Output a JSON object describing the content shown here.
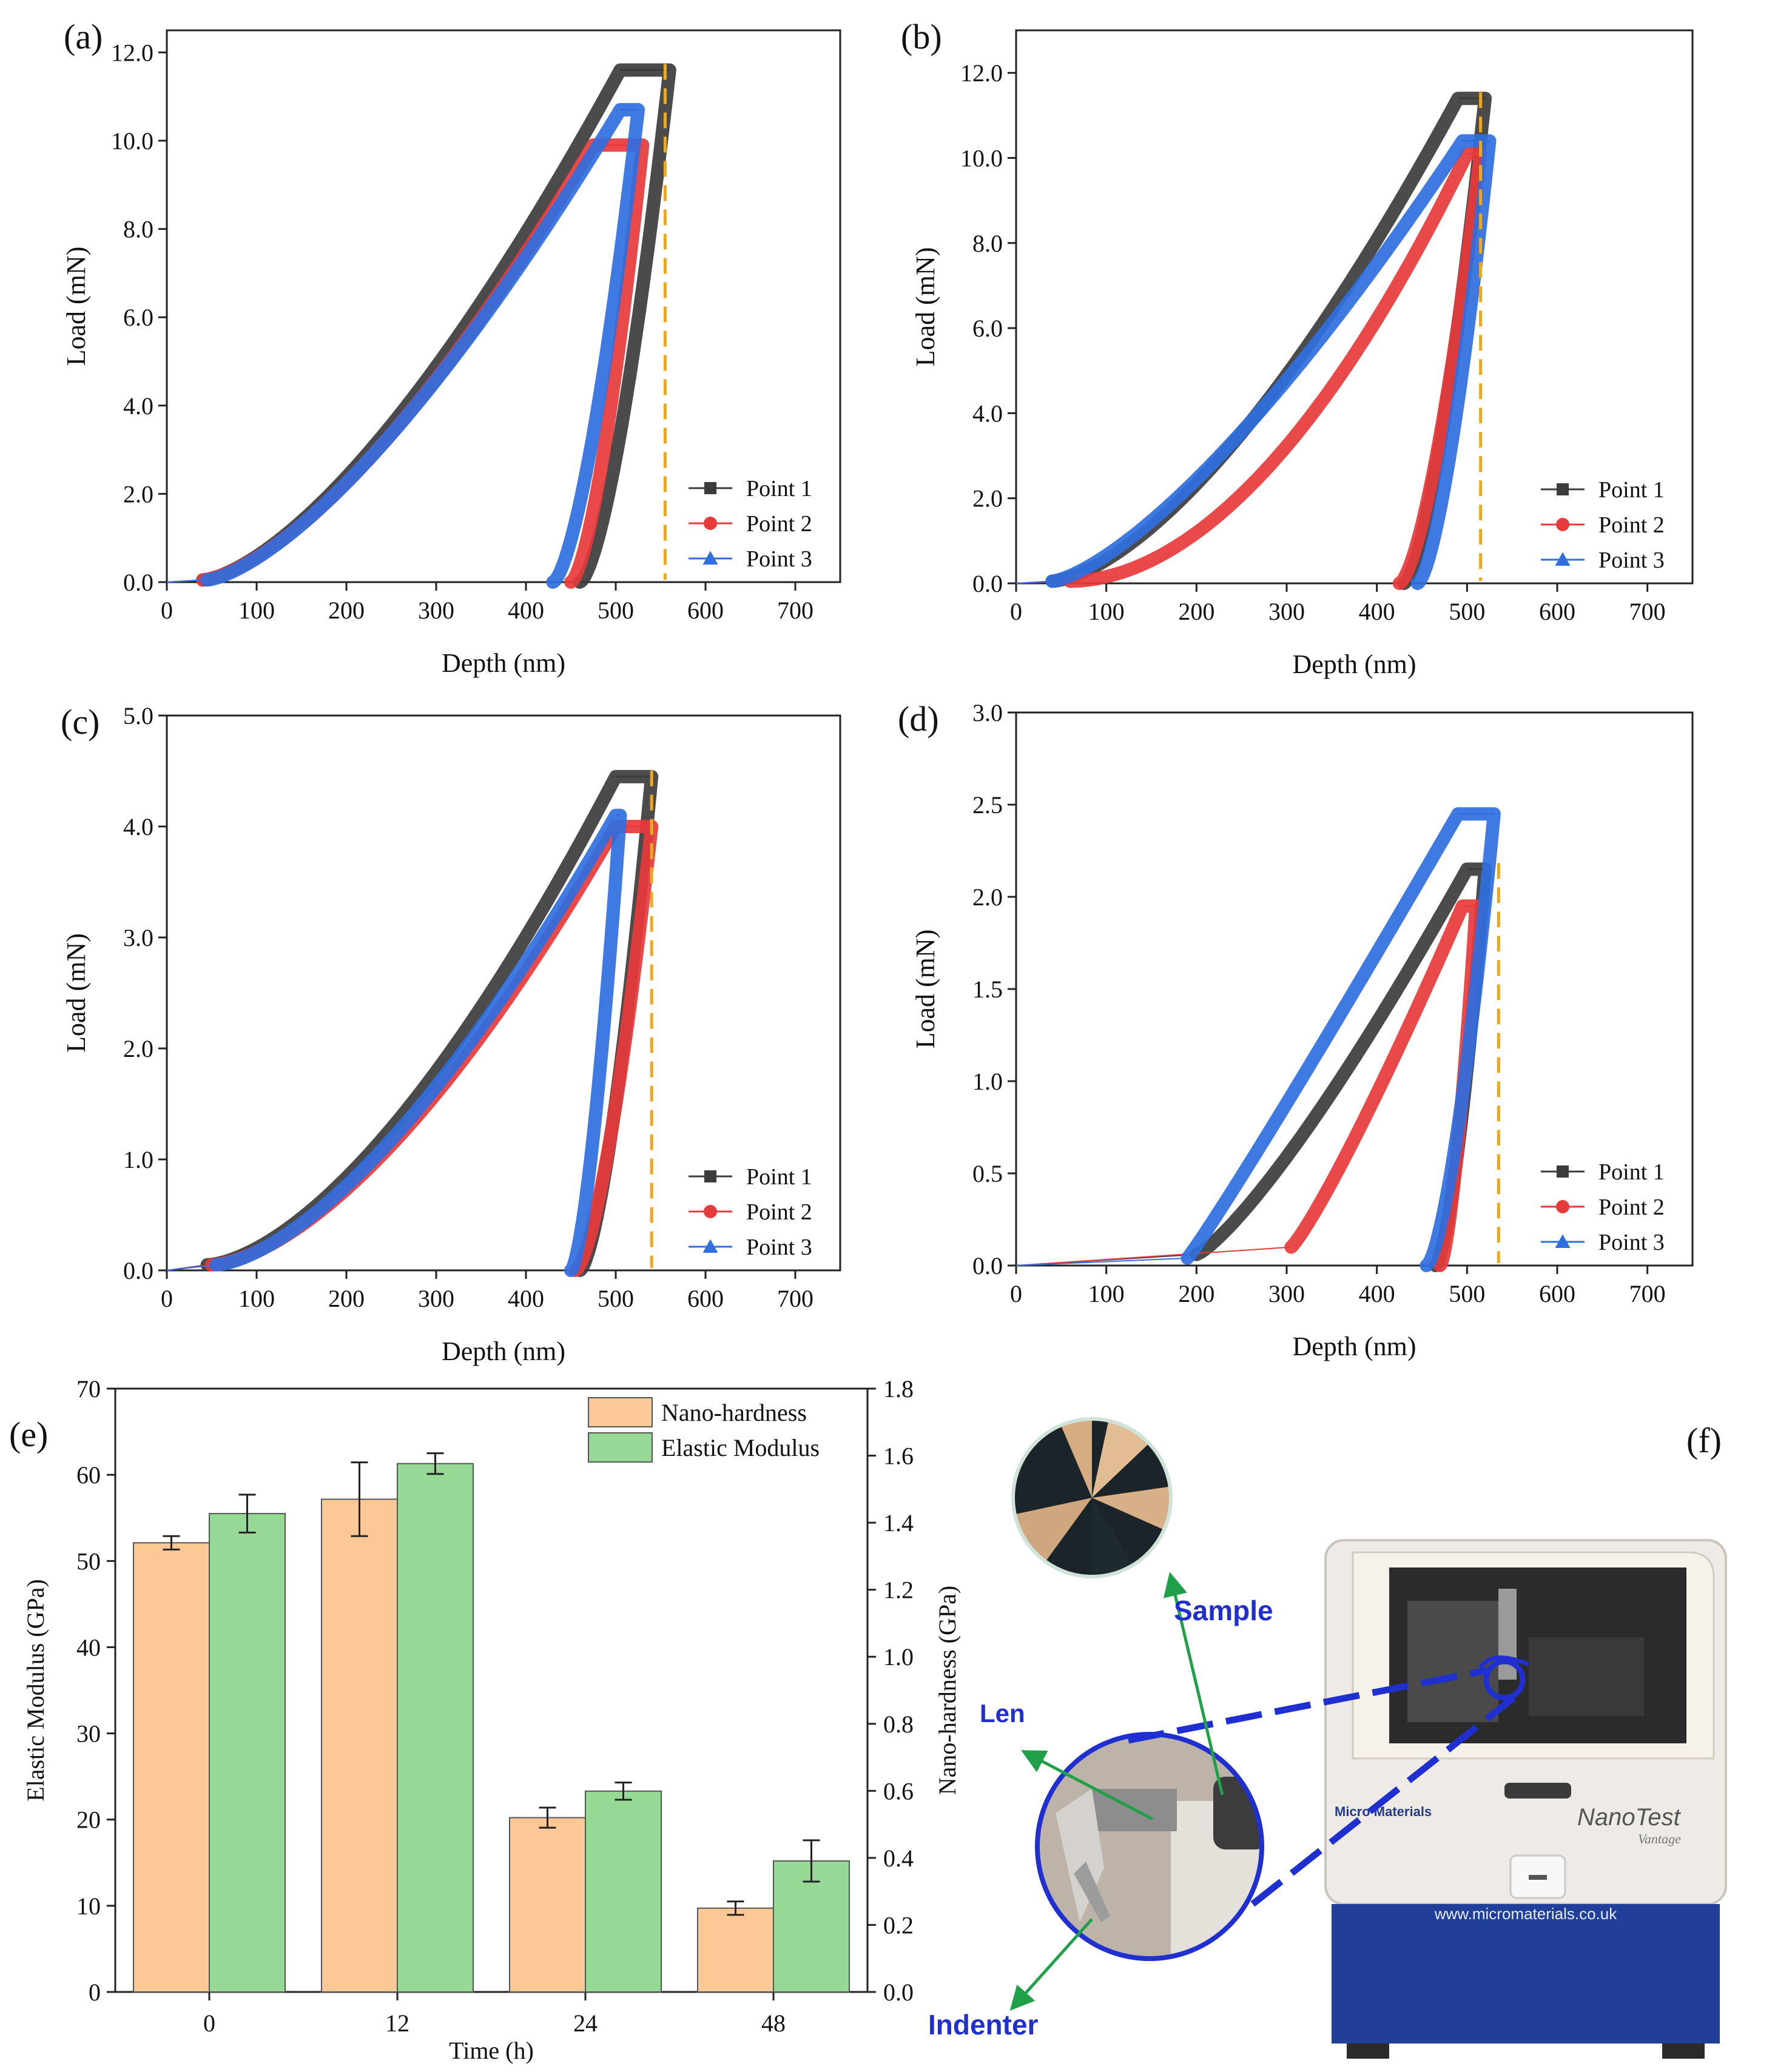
{
  "colors": {
    "point1": "#3c3c3c",
    "point2": "#e83a3a",
    "point3": "#2f6fe0",
    "guide": "#e8a92a",
    "bar_nano": "#fcc996",
    "bar_elastic": "#95d994",
    "callout": "#1f2fd0",
    "arrow": "#21a04a"
  },
  "chart_data": [
    {
      "panel": "(a)",
      "type": "line",
      "xlabel": "Depth (nm)",
      "ylabel": "Load (mN)",
      "xlim": [
        0,
        750
      ],
      "ylim": [
        0,
        12.5
      ],
      "xticks": [
        0,
        100,
        200,
        300,
        400,
        500,
        600,
        700
      ],
      "yticks": [
        0.0,
        2.0,
        4.0,
        6.0,
        8.0,
        10.0,
        12.0
      ],
      "y_decimals": 1,
      "legend": "bottom-right",
      "guide_x": 555,
      "series": [
        {
          "name": "Point 1",
          "marker": "square",
          "offset": [
            0,
            0,
            40,
            0.05
          ],
          "load_power": 1.5,
          "x0": 40,
          "peak": [
            505,
            11.6
          ],
          "hold_end": 560,
          "end_x": 460
        },
        {
          "name": "Point 2",
          "marker": "circle",
          "offset": [
            0,
            0,
            40,
            0.05
          ],
          "load_power": 1.5,
          "x0": 40,
          "peak": [
            475,
            9.9
          ],
          "hold_end": 530,
          "end_x": 450
        },
        {
          "name": "Point 3",
          "marker": "triangle",
          "offset": [
            0,
            0,
            45,
            0.05
          ],
          "load_power": 1.45,
          "x0": 45,
          "peak": [
            505,
            10.7
          ],
          "hold_end": 525,
          "end_x": 430
        }
      ]
    },
    {
      "panel": "(b)",
      "type": "line",
      "xlabel": "Depth (nm)",
      "ylabel": "Load (mN)",
      "xlim": [
        0,
        750
      ],
      "ylim": [
        0,
        13
      ],
      "xticks": [
        0,
        100,
        200,
        300,
        400,
        500,
        600,
        700
      ],
      "yticks": [
        0.0,
        2.0,
        4.0,
        6.0,
        8.0,
        10.0,
        12.0
      ],
      "y_decimals": 1,
      "legend": "bottom-right",
      "guide_x": 515,
      "series": [
        {
          "name": "Point 1",
          "marker": "square",
          "offset": [
            0,
            0,
            40,
            0.05
          ],
          "load_power": 1.55,
          "x0": 40,
          "peak": [
            490,
            11.4
          ],
          "hold_end": 520,
          "end_x": 430
        },
        {
          "name": "Point 2",
          "marker": "circle",
          "offset": [
            0,
            0,
            60,
            0.05
          ],
          "load_power": 1.9,
          "x0": 60,
          "peak": [
            500,
            10.1
          ],
          "hold_end": 515,
          "end_x": 425
        },
        {
          "name": "Point 3",
          "marker": "triangle",
          "offset": [
            0,
            0,
            40,
            0.05
          ],
          "load_power": 1.4,
          "x0": 40,
          "peak": [
            495,
            10.4
          ],
          "hold_end": 525,
          "end_x": 445
        }
      ]
    },
    {
      "panel": "(c)",
      "type": "line",
      "xlabel": "Depth (nm)",
      "ylabel": "Load (mN)",
      "xlim": [
        0,
        750
      ],
      "ylim": [
        0,
        5
      ],
      "xticks": [
        0,
        100,
        200,
        300,
        400,
        500,
        600,
        700
      ],
      "yticks": [
        0.0,
        1.0,
        2.0,
        3.0,
        4.0,
        5.0
      ],
      "y_decimals": 1,
      "legend": "bottom-right",
      "guide_x": 540,
      "series": [
        {
          "name": "Point 1",
          "marker": "square",
          "offset": [
            0,
            0,
            45,
            0.05
          ],
          "load_power": 1.6,
          "x0": 45,
          "peak": [
            500,
            4.45
          ],
          "hold_end": 540,
          "end_x": 460
        },
        {
          "name": "Point 2",
          "marker": "circle",
          "offset": [
            0,
            0,
            50,
            0.05
          ],
          "load_power": 1.6,
          "x0": 50,
          "peak": [
            500,
            4.0
          ],
          "hold_end": 540,
          "end_x": 455
        },
        {
          "name": "Point 3",
          "marker": "triangle",
          "offset": [
            0,
            0,
            55,
            0.05
          ],
          "load_power": 1.55,
          "x0": 55,
          "peak": [
            500,
            4.1
          ],
          "hold_end": 505,
          "end_x": 450
        }
      ]
    },
    {
      "panel": "(d)",
      "type": "line",
      "xlabel": "Depth (nm)",
      "ylabel": "Load (mN)",
      "xlim": [
        0,
        750
      ],
      "ylim": [
        0,
        3
      ],
      "xticks": [
        0,
        100,
        200,
        300,
        400,
        500,
        600,
        700
      ],
      "yticks": [
        0.0,
        0.5,
        1.0,
        1.5,
        2.0,
        2.5,
        3.0
      ],
      "y_decimals": 1,
      "legend": "bottom-right",
      "guide_x": 535,
      "series": [
        {
          "name": "Point 1",
          "marker": "square",
          "offset": [
            0,
            0,
            200,
            0.06
          ],
          "load_power": 1.25,
          "x0": 200,
          "peak": [
            500,
            2.15
          ],
          "hold_end": 520,
          "end_x": 465
        },
        {
          "name": "Point 2",
          "marker": "circle",
          "offset": [
            0,
            0,
            305,
            0.1
          ],
          "load_power": 1.15,
          "x0": 305,
          "peak": [
            495,
            1.95
          ],
          "hold_end": 510,
          "end_x": 470
        },
        {
          "name": "Point 3",
          "marker": "triangle",
          "offset": [
            0,
            0,
            190,
            0.04
          ],
          "load_power": 1.05,
          "x0": 190,
          "peak": [
            490,
            2.45
          ],
          "hold_end": 530,
          "end_x": 455
        }
      ]
    },
    {
      "panel": "(e)",
      "type": "bar",
      "categories": [
        "0",
        "12",
        "24",
        "48"
      ],
      "xlabel": "Time (h)",
      "ylabel_left": "Elastic Modulus (GPa)",
      "ylabel_right": "Nano-hardness (GPa)",
      "ylim_left": [
        0,
        70
      ],
      "ylim_right": [
        0,
        1.8
      ],
      "yticks_left": [
        0,
        10,
        20,
        30,
        40,
        50,
        60,
        70
      ],
      "yticks_right": [
        0.0,
        0.2,
        0.4,
        0.6,
        0.8,
        1.0,
        1.2,
        1.4,
        1.6,
        1.8
      ],
      "legend": "top-right",
      "series": [
        {
          "name": "Nano-hardness",
          "axis": "right",
          "values": [
            1.34,
            1.47,
            0.52,
            0.25
          ],
          "errors": [
            0.02,
            0.11,
            0.03,
            0.02
          ]
        },
        {
          "name": "Elastic Modulus",
          "axis": "left",
          "values": [
            55.5,
            61.3,
            23.3,
            15.2
          ],
          "errors": [
            2.2,
            1.2,
            1.0,
            2.4
          ]
        }
      ]
    }
  ],
  "photo": {
    "panel": "(f)",
    "labels": {
      "sample": "Sample",
      "len": "Len",
      "indenter": "Indenter"
    },
    "brand_text": "Micro Materials",
    "model_text": "NanoTest",
    "model_sub": "Vantage",
    "url_text": "www.micromaterials.co.uk"
  }
}
